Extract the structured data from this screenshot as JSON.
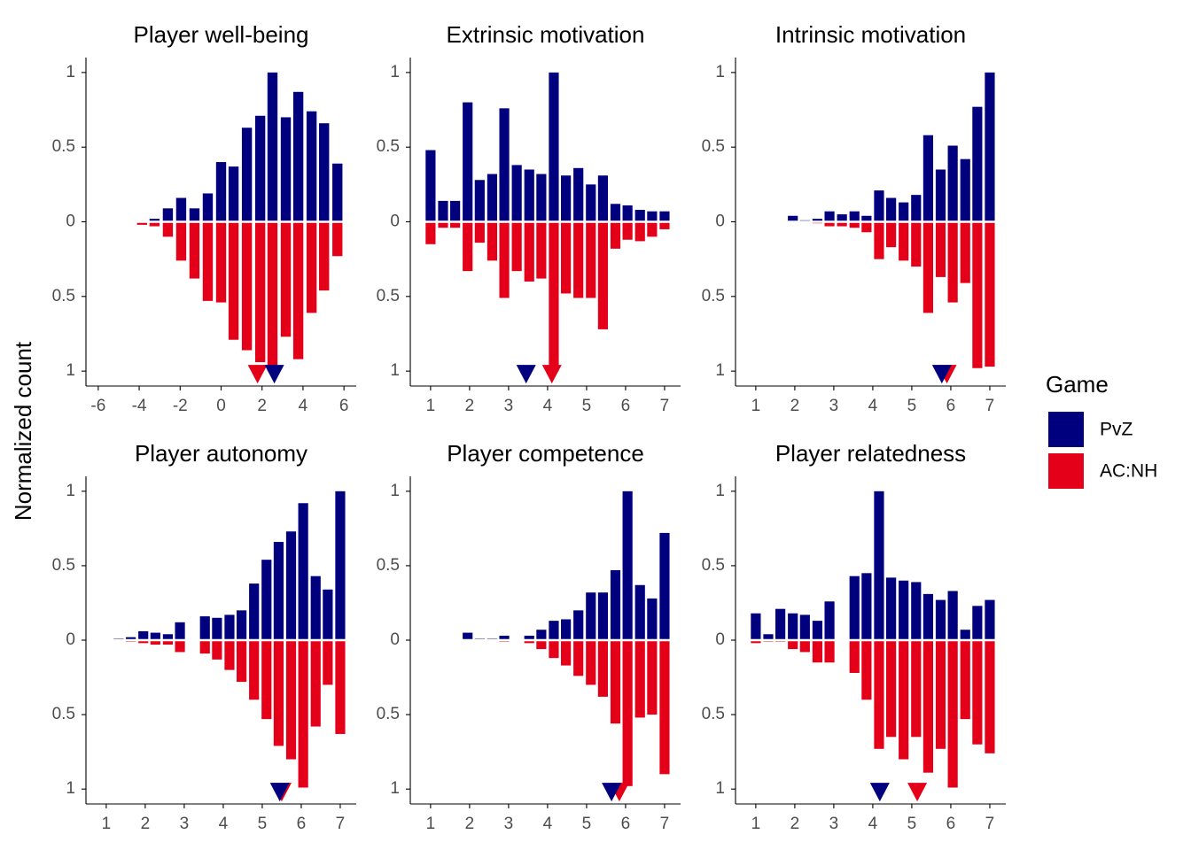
{
  "ylabel": "Normalized count",
  "legend_title": "Game",
  "chart_data": [
    {
      "type": "bar",
      "title": "Player well-being",
      "x": [
        -4.46,
        -3.86,
        -3.25,
        -2.6,
        -1.95,
        -1.3,
        -0.65,
        0,
        0.61,
        1.26,
        1.91,
        2.51,
        3.16,
        3.77,
        4.42,
        5.03,
        5.68
      ],
      "series": [
        {
          "name": "PvZ",
          "color": "#00007f",
          "values": [
            0.005,
            0,
            0.02,
            0.09,
            0.16,
            0.09,
            0.19,
            0.4,
            0.37,
            0.63,
            0.71,
            1.0,
            0.7,
            0.87,
            0.74,
            0.66,
            0.39
          ],
          "mean": 2.6
        },
        {
          "name": "AC:NH",
          "color": "#e5001a",
          "values": [
            -0.005,
            -0.02,
            -0.03,
            -0.1,
            -0.26,
            -0.38,
            -0.53,
            -0.54,
            -0.79,
            -0.86,
            -0.94,
            -1.0,
            -0.77,
            -0.92,
            -0.61,
            -0.46,
            -0.23
          ],
          "mean": 1.78
        }
      ],
      "xlim": [
        -6.6,
        6.6
      ],
      "xticks": [
        -6,
        -4,
        -2,
        0,
        2,
        4,
        6
      ],
      "ylim": [
        -1.1,
        1.1
      ],
      "yticks": [
        {
          "value": -1,
          "label": "1"
        },
        {
          "value": -0.5,
          "label": "0.5"
        },
        0,
        0.5,
        1
      ]
    },
    {
      "type": "bar",
      "title": "Extrinsic motivation",
      "x": [
        1,
        1.32,
        1.63,
        1.95,
        2.26,
        2.58,
        2.89,
        3.21,
        3.53,
        3.84,
        4.16,
        4.47,
        4.79,
        5.11,
        5.42,
        5.74,
        6.05,
        6.37,
        6.68,
        7
      ],
      "series": [
        {
          "name": "PvZ",
          "color": "#00007f",
          "values": [
            0.48,
            0.14,
            0.14,
            0.8,
            0.28,
            0.32,
            0.76,
            0.38,
            0.35,
            0.32,
            1.0,
            0.31,
            0.36,
            0.25,
            0.31,
            0.12,
            0.11,
            0.08,
            0.07,
            0.07
          ],
          "mean": 3.45
        },
        {
          "name": "AC:NH",
          "color": "#e5001a",
          "values": [
            -0.15,
            -0.04,
            -0.04,
            -0.33,
            -0.14,
            -0.26,
            -0.51,
            -0.33,
            -0.4,
            -0.38,
            -1.0,
            -0.48,
            -0.51,
            -0.51,
            -0.72,
            -0.18,
            -0.12,
            -0.13,
            -0.1,
            -0.05
          ],
          "mean": 4.11
        }
      ],
      "xlim": [
        0.48,
        7.41
      ],
      "xticks": [
        1,
        2,
        3,
        4,
        5,
        6,
        7
      ],
      "ylim": [
        -1.1,
        1.1
      ],
      "yticks": [
        {
          "value": -1,
          "label": "1"
        },
        {
          "value": -0.5,
          "label": "0.5"
        },
        0,
        0.5,
        1
      ]
    },
    {
      "type": "bar",
      "title": "Intrinsic motivation",
      "x": [
        1.95,
        2.26,
        2.58,
        2.89,
        3.21,
        3.53,
        3.84,
        4.16,
        4.47,
        4.79,
        5.11,
        5.42,
        5.74,
        6.05,
        6.37,
        6.68,
        7
      ],
      "series": [
        {
          "name": "PvZ",
          "color": "#00007f",
          "values": [
            0.04,
            0.01,
            0.02,
            0.07,
            0.05,
            0.07,
            0.04,
            0.21,
            0.16,
            0.13,
            0.18,
            0.58,
            0.35,
            0.51,
            0.42,
            0.77,
            1.0
          ],
          "mean": 5.77
        },
        {
          "name": "AC:NH",
          "color": "#e5001a",
          "values": [
            0,
            0,
            -0.01,
            -0.03,
            -0.03,
            -0.04,
            -0.07,
            -0.25,
            -0.17,
            -0.26,
            -0.3,
            -0.61,
            -0.37,
            -0.54,
            -0.41,
            -0.98,
            -0.97
          ],
          "mean": 5.9
        }
      ],
      "xlim": [
        0.48,
        7.41
      ],
      "xticks": [
        1,
        2,
        3,
        4,
        5,
        6,
        7
      ],
      "ylim": [
        -1.1,
        1.1
      ],
      "yticks": [
        {
          "value": -1,
          "label": "1"
        },
        {
          "value": -0.5,
          "label": "0.5"
        },
        0,
        0.5,
        1
      ]
    },
    {
      "type": "bar",
      "title": "Player autonomy",
      "x": [
        1.32,
        1.63,
        1.95,
        2.26,
        2.58,
        2.89,
        3.21,
        3.53,
        3.84,
        4.16,
        4.47,
        4.79,
        5.11,
        5.42,
        5.74,
        6.05,
        6.37,
        6.68,
        7
      ],
      "series": [
        {
          "name": "PvZ",
          "color": "#00007f",
          "values": [
            0.01,
            0.02,
            0.06,
            0.05,
            0.04,
            0.12,
            0,
            0.16,
            0.15,
            0.17,
            0.2,
            0.38,
            0.54,
            0.66,
            0.73,
            0.92,
            0.43,
            0.34,
            1.0
          ],
          "mean": 5.45
        },
        {
          "name": "AC:NH",
          "color": "#e5001a",
          "values": [
            -0.005,
            -0.01,
            -0.02,
            -0.03,
            -0.03,
            -0.08,
            0,
            -0.09,
            -0.13,
            -0.2,
            -0.28,
            -0.4,
            -0.53,
            -0.71,
            -0.8,
            -0.99,
            -0.58,
            -0.3,
            -0.63
          ],
          "mean": 5.5
        }
      ],
      "xlim": [
        0.48,
        7.41
      ],
      "xticks": [
        1,
        2,
        3,
        4,
        5,
        6,
        7
      ],
      "ylim": [
        -1.1,
        1.1
      ],
      "yticks": [
        {
          "value": -1,
          "label": "1"
        },
        {
          "value": -0.5,
          "label": "0.5"
        },
        0,
        0.5,
        1
      ]
    },
    {
      "type": "bar",
      "title": "Player competence",
      "x": [
        1.95,
        2.26,
        2.58,
        2.89,
        3.21,
        3.53,
        3.84,
        4.16,
        4.47,
        4.79,
        5.11,
        5.42,
        5.74,
        6.05,
        6.37,
        6.68,
        7
      ],
      "series": [
        {
          "name": "PvZ",
          "color": "#00007f",
          "values": [
            0.05,
            0.01,
            0.01,
            0.03,
            0,
            0.03,
            0.07,
            0.13,
            0.14,
            0.2,
            0.32,
            0.32,
            0.47,
            1.0,
            0.37,
            0.28,
            0.72
          ],
          "mean": 5.64
        },
        {
          "name": "AC:NH",
          "color": "#e5001a",
          "values": [
            0,
            -0.005,
            -0.005,
            -0.01,
            0,
            -0.02,
            -0.06,
            -0.12,
            -0.17,
            -0.24,
            -0.3,
            -0.38,
            -0.56,
            -0.98,
            -0.52,
            -0.5,
            -0.9
          ],
          "mean": 5.84
        }
      ],
      "xlim": [
        0.48,
        7.41
      ],
      "xticks": [
        1,
        2,
        3,
        4,
        5,
        6,
        7
      ],
      "ylim": [
        -1.1,
        1.1
      ],
      "yticks": [
        {
          "value": -1,
          "label": "1"
        },
        {
          "value": -0.5,
          "label": "0.5"
        },
        0,
        0.5,
        1
      ]
    },
    {
      "type": "bar",
      "title": "Player relatedness",
      "x": [
        1,
        1.32,
        1.63,
        1.95,
        2.26,
        2.58,
        2.89,
        3.21,
        3.53,
        3.84,
        4.16,
        4.47,
        4.79,
        5.11,
        5.42,
        5.74,
        6.05,
        6.37,
        6.68,
        7
      ],
      "series": [
        {
          "name": "PvZ",
          "color": "#00007f",
          "values": [
            0.18,
            0.04,
            0.21,
            0.18,
            0.17,
            0.13,
            0.26,
            0,
            0.43,
            0.45,
            1.0,
            0.42,
            0.4,
            0.39,
            0.31,
            0.27,
            0.33,
            0.07,
            0.23,
            0.27
          ],
          "mean": 4.18
        },
        {
          "name": "AC:NH",
          "color": "#e5001a",
          "values": [
            -0.02,
            -0.01,
            -0.01,
            -0.06,
            -0.08,
            -0.15,
            -0.15,
            0,
            -0.22,
            -0.4,
            -0.73,
            -0.65,
            -0.8,
            -0.65,
            -0.89,
            -0.73,
            -0.99,
            -0.53,
            -0.7,
            -0.76
          ],
          "mean": 5.14
        }
      ],
      "xlim": [
        0.48,
        7.41
      ],
      "xticks": [
        1,
        2,
        3,
        4,
        5,
        6,
        7
      ],
      "ylim": [
        -1.1,
        1.1
      ],
      "yticks": [
        {
          "value": -1,
          "label": "1"
        },
        {
          "value": -0.5,
          "label": "0.5"
        },
        0,
        0.5,
        1
      ]
    }
  ]
}
